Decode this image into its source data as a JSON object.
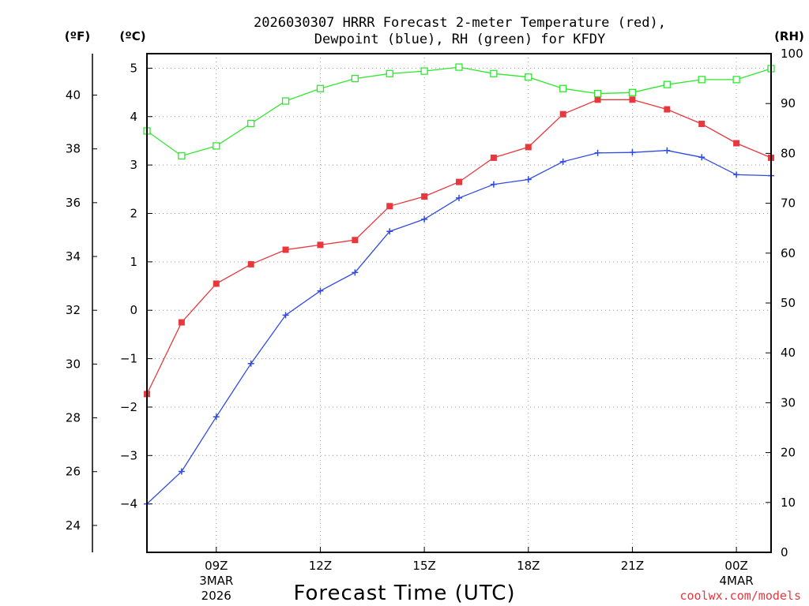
{
  "chart_data": {
    "type": "line",
    "title_line1": "2026030307 HRRR Forecast 2-meter Temperature (red),",
    "title_line2": "Dewpoint (blue), RH (green) for KFDY",
    "xlabel": "Forecast Time (UTC)",
    "credit": "coolwx.com/models",
    "units": {
      "fahrenheit": "(ºF)",
      "celsius": "(ºC)",
      "rh": "(RH)"
    },
    "x_hours": [
      7,
      8,
      9,
      10,
      11,
      12,
      13,
      14,
      15,
      16,
      17,
      18,
      19,
      20,
      21,
      22,
      23,
      24,
      25
    ],
    "xlim": [
      7,
      25
    ],
    "x_ticks": [
      {
        "hour": 9,
        "label": "09Z",
        "line2": "3MAR",
        "line3": "2026"
      },
      {
        "hour": 12,
        "label": "12Z",
        "line2": "",
        "line3": ""
      },
      {
        "hour": 15,
        "label": "15Z",
        "line2": "",
        "line3": ""
      },
      {
        "hour": 18,
        "label": "18Z",
        "line2": "",
        "line3": ""
      },
      {
        "hour": 21,
        "label": "21Z",
        "line2": "",
        "line3": ""
      },
      {
        "hour": 24,
        "label": "00Z",
        "line2": "4MAR",
        "line3": ""
      }
    ],
    "celsius_range": [
      -5.0,
      5.3
    ],
    "celsius_ticks": [
      "-4",
      "-3",
      "-2",
      "-1",
      "0",
      "1",
      "2",
      "3",
      "4",
      "5"
    ],
    "fahrenheit_ticks": [
      "24",
      "26",
      "28",
      "30",
      "32",
      "34",
      "36",
      "38",
      "40"
    ],
    "rh_range": [
      0,
      100
    ],
    "rh_ticks": [
      "0",
      "10",
      "20",
      "30",
      "40",
      "50",
      "60",
      "70",
      "80",
      "90",
      "100"
    ],
    "series": [
      {
        "name": "Temperature",
        "axis": "celsius",
        "color": "#e8383e",
        "marker": "filled-square",
        "values": [
          -1.73,
          -0.25,
          0.55,
          0.95,
          1.25,
          1.35,
          1.45,
          2.15,
          2.35,
          2.65,
          3.15,
          3.37,
          4.05,
          4.35,
          4.35,
          4.15,
          3.85,
          3.45,
          3.15
        ]
      },
      {
        "name": "Dewpoint",
        "axis": "celsius",
        "color": "#2f4ae0",
        "marker": "plus",
        "values": [
          -4.0,
          -3.33,
          -2.2,
          -1.1,
          -0.1,
          0.4,
          0.78,
          1.63,
          1.88,
          2.32,
          2.6,
          2.7,
          3.07,
          3.25,
          3.26,
          3.3,
          3.16,
          2.8,
          2.78
        ]
      },
      {
        "name": "RH",
        "axis": "rh",
        "color": "#2ee82e",
        "marker": "open-square",
        "values": [
          84.5,
          79.5,
          81.5,
          86.0,
          90.5,
          93.0,
          95.0,
          96.0,
          96.5,
          97.3,
          96.0,
          95.3,
          93.0,
          92.0,
          92.2,
          93.8,
          94.8,
          94.8,
          97.0
        ]
      }
    ]
  }
}
